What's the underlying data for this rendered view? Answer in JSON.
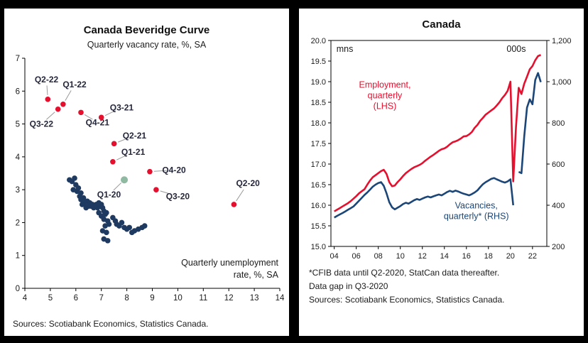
{
  "left_panel": {
    "title": "Canada Beveridge Curve",
    "subtitle": "Quarterly vacancy rate, %, SA",
    "source": "Sources: Scotiabank Economics, Statistics Canada."
  },
  "right_panel": {
    "title": "Canada",
    "footnote_line1": "*CFIB data until Q2-2020, StatCan data thereafter.",
    "footnote_line2": "Data gap in Q3-2020",
    "source": "Sources: Scotiabank Economics, Statistics Canada."
  },
  "colors": {
    "red": "#e50f2e",
    "navy_line": "#1b4677",
    "navy_scatter": "#1f3a60",
    "green": "#8fb9a0",
    "text": "#1a1a1a",
    "label": "#24263a",
    "leader": "#999999"
  },
  "chart_data": [
    {
      "type": "scatter",
      "title": "Canada Beveridge Curve",
      "ylabel": "Quarterly vacancy rate, %, SA",
      "xlabel": "Quarterly unemployment rate, %, SA",
      "xlabel_lines": [
        "Quarterly unemployment",
        "rate, %, SA"
      ],
      "xlim": [
        4,
        14
      ],
      "ylim": [
        0,
        7
      ],
      "xticks": [
        4,
        5,
        6,
        7,
        8,
        9,
        10,
        11,
        12,
        13,
        14
      ],
      "yticks": [
        0,
        1,
        2,
        3,
        4,
        5,
        6,
        7
      ],
      "series": [
        {
          "name": "historical-quarters",
          "color": "#1f3a60",
          "points": [
            [
              5.75,
              3.3
            ],
            [
              5.85,
              3.25
            ],
            [
              5.95,
              3.35
            ],
            [
              6.0,
              3.15
            ],
            [
              5.9,
              3.0
            ],
            [
              6.05,
              2.95
            ],
            [
              6.1,
              3.05
            ],
            [
              6.15,
              2.8
            ],
            [
              6.2,
              2.9
            ],
            [
              6.2,
              2.7
            ],
            [
              6.3,
              2.75
            ],
            [
              6.25,
              2.55
            ],
            [
              6.35,
              2.6
            ],
            [
              6.45,
              2.65
            ],
            [
              6.4,
              2.45
            ],
            [
              6.5,
              2.5
            ],
            [
              6.55,
              2.6
            ],
            [
              6.6,
              2.5
            ],
            [
              6.65,
              2.55
            ],
            [
              6.7,
              2.45
            ],
            [
              6.8,
              2.55
            ],
            [
              6.85,
              2.45
            ],
            [
              6.9,
              2.6
            ],
            [
              6.95,
              2.5
            ],
            [
              7.0,
              2.55
            ],
            [
              7.05,
              2.45
            ],
            [
              6.9,
              2.3
            ],
            [
              7.0,
              2.2
            ],
            [
              7.1,
              2.35
            ],
            [
              7.15,
              2.25
            ],
            [
              7.2,
              2.3
            ],
            [
              7.1,
              2.1
            ],
            [
              7.25,
              2.05
            ],
            [
              7.3,
              1.95
            ],
            [
              7.15,
              1.9
            ],
            [
              7.05,
              1.75
            ],
            [
              7.2,
              1.7
            ],
            [
              7.1,
              1.5
            ],
            [
              7.25,
              1.45
            ],
            [
              7.45,
              2.15
            ],
            [
              7.55,
              2.05
            ],
            [
              7.6,
              1.95
            ],
            [
              7.7,
              1.9
            ],
            [
              7.8,
              2.0
            ],
            [
              7.9,
              1.85
            ],
            [
              8.0,
              1.8
            ],
            [
              8.1,
              1.85
            ],
            [
              8.2,
              1.7
            ],
            [
              8.3,
              1.75
            ],
            [
              8.45,
              1.8
            ],
            [
              8.6,
              1.85
            ],
            [
              8.7,
              1.9
            ]
          ]
        },
        {
          "name": "pandemic-quarters",
          "color": "#e50f2e",
          "points": [
            {
              "label": "Q2-22",
              "x": 4.9,
              "y": 5.75,
              "label_x": 4.85,
              "label_y": 6.35
            },
            {
              "label": "Q1-22",
              "x": 5.5,
              "y": 5.6,
              "label_x": 5.95,
              "label_y": 6.2
            },
            {
              "label": "Q3-22",
              "x": 5.3,
              "y": 5.45,
              "label_x": 4.65,
              "label_y": 5.0
            },
            {
              "label": "Q4-21",
              "x": 6.2,
              "y": 5.35,
              "label_x": 6.85,
              "label_y": 5.05
            },
            {
              "label": "Q3-21",
              "x": 7.0,
              "y": 5.2,
              "label_x": 7.8,
              "label_y": 5.5
            },
            {
              "label": "Q2-21",
              "x": 7.5,
              "y": 4.4,
              "label_x": 8.3,
              "label_y": 4.65
            },
            {
              "label": "Q1-21",
              "x": 7.45,
              "y": 3.85,
              "label_x": 8.25,
              "label_y": 4.15
            },
            {
              "label": "Q4-20",
              "x": 8.9,
              "y": 3.55,
              "label_x": 9.85,
              "label_y": 3.6
            },
            {
              "label": "Q3-20",
              "x": 9.15,
              "y": 3.0,
              "label_x": 10.0,
              "label_y": 2.8
            },
            {
              "label": "Q2-20",
              "x": 12.2,
              "y": 2.55,
              "label_x": 12.75,
              "label_y": 3.2
            }
          ]
        },
        {
          "name": "q1-2020-marker",
          "color": "#8fb9a0",
          "label": "Q1-20",
          "point": [
            7.9,
            3.3
          ],
          "label_x": 7.3,
          "label_y": 2.85
        }
      ]
    },
    {
      "type": "line",
      "title": "Canada",
      "left_unit": "mns",
      "right_unit": "000s",
      "x_start": 2004,
      "x_step": 0.25,
      "xlim": [
        2003.7,
        2023.3
      ],
      "ylim_left": [
        15,
        20
      ],
      "ylim_right": [
        200,
        1200
      ],
      "yticks_left": [
        15,
        15.5,
        16,
        16.5,
        17,
        17.5,
        18,
        18.5,
        19,
        19.5,
        20
      ],
      "yticks_right": [
        200,
        400,
        600,
        800,
        1000,
        1200
      ],
      "xticks": [
        2004,
        2006,
        2008,
        2010,
        2012,
        2014,
        2016,
        2018,
        2020,
        2022
      ],
      "series": [
        {
          "name": "Employment, quarterly (LHS)",
          "axis": "left",
          "color": "#e50f2e",
          "values": [
            15.85,
            15.89,
            15.93,
            15.97,
            16.01,
            16.05,
            16.1,
            16.16,
            16.22,
            16.29,
            16.34,
            16.39,
            16.5,
            16.6,
            16.68,
            16.73,
            16.78,
            16.83,
            16.86,
            16.76,
            16.56,
            16.46,
            16.48,
            16.56,
            16.63,
            16.71,
            16.78,
            16.83,
            16.88,
            16.92,
            16.95,
            16.98,
            17.02,
            17.08,
            17.13,
            17.18,
            17.22,
            17.27,
            17.32,
            17.36,
            17.38,
            17.42,
            17.48,
            17.53,
            17.55,
            17.58,
            17.62,
            17.67,
            17.68,
            17.72,
            17.78,
            17.88,
            17.95,
            18.05,
            18.12,
            18.2,
            18.25,
            18.3,
            18.35,
            18.42,
            18.5,
            18.6,
            18.68,
            18.78,
            19.0,
            16.58,
            17.9,
            18.85,
            18.7,
            18.95,
            19.12,
            19.3,
            19.38,
            19.52,
            19.62,
            19.65
          ]
        },
        {
          "name": "Vacancies, quarterly* (RHS)",
          "axis": "right",
          "color": "#1b4677",
          "values": [
            340,
            348,
            355,
            362,
            370,
            378,
            386,
            394,
            408,
            422,
            436,
            450,
            462,
            476,
            490,
            500,
            508,
            512,
            494,
            458,
            415,
            390,
            380,
            388,
            396,
            406,
            412,
            408,
            416,
            424,
            430,
            426,
            432,
            438,
            442,
            438,
            443,
            448,
            452,
            448,
            456,
            464,
            470,
            465,
            471,
            467,
            461,
            456,
            452,
            448,
            454,
            462,
            472,
            488,
            502,
            512,
            520,
            528,
            532,
            526,
            520,
            514,
            510,
            516,
            526,
            400,
            null,
            562,
            556,
            734,
            874,
            914,
            890,
            1008,
            1042,
            998
          ]
        }
      ],
      "annotations": [
        {
          "x": 2008.6,
          "y": 18.85,
          "color": "#e50f2e",
          "lines": [
            "Employment,",
            "quarterly",
            "(LHS)"
          ]
        },
        {
          "x": 2016.9,
          "y": 15.92,
          "color": "#1b4677",
          "lines": [
            "Vacancies,",
            "quarterly* (RHS)"
          ]
        },
        {
          "x": 2004.2,
          "y": 19.72,
          "color": "#1a1a1a",
          "anchor": "start",
          "lines": [
            "mns"
          ]
        },
        {
          "x": 2021.4,
          "y": 19.72,
          "color": "#1a1a1a",
          "anchor": "end",
          "lines": [
            "000s"
          ]
        }
      ]
    }
  ]
}
